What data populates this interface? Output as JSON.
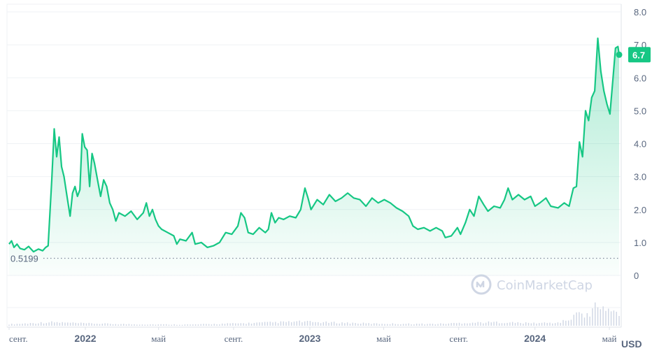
{
  "chart_data": {
    "type": "area",
    "title": "",
    "currency_label": "USD",
    "current_price_label": "6.7",
    "current_price": 6.7,
    "baseline_label": "0.5199",
    "baseline_value": 0.5199,
    "watermark": "CoinMarketCap",
    "ylim": [
      0,
      8
    ],
    "y_ticks": [
      "8.0",
      "7.0",
      "6.0",
      "5.0",
      "4.0",
      "3.0",
      "2.0",
      "1.0",
      "0"
    ],
    "y_tick_values": [
      8,
      7,
      6,
      5,
      4,
      3,
      2,
      1,
      0
    ],
    "x_ticks": [
      {
        "label": "сент.",
        "t": 0.0,
        "year": false
      },
      {
        "label": "2022",
        "t": 0.125,
        "year": true
      },
      {
        "label": "май",
        "t": 0.245,
        "year": false
      },
      {
        "label": "сент.",
        "t": 0.368,
        "year": false
      },
      {
        "label": "2023",
        "t": 0.493,
        "year": true
      },
      {
        "label": "май",
        "t": 0.614,
        "year": false
      },
      {
        "label": "сент.",
        "t": 0.737,
        "year": false
      },
      {
        "label": "2024",
        "t": 0.862,
        "year": true
      },
      {
        "label": "май",
        "t": 0.984,
        "year": false
      }
    ],
    "series": [
      {
        "values": [
          [
            0.0,
            0.95
          ],
          [
            0.004,
            1.05
          ],
          [
            0.008,
            0.85
          ],
          [
            0.013,
            0.95
          ],
          [
            0.018,
            0.82
          ],
          [
            0.025,
            0.78
          ],
          [
            0.032,
            0.88
          ],
          [
            0.04,
            0.72
          ],
          [
            0.048,
            0.8
          ],
          [
            0.055,
            0.75
          ],
          [
            0.06,
            0.85
          ],
          [
            0.064,
            0.9
          ],
          [
            0.07,
            2.9
          ],
          [
            0.074,
            4.45
          ],
          [
            0.078,
            3.6
          ],
          [
            0.082,
            4.2
          ],
          [
            0.086,
            3.3
          ],
          [
            0.09,
            3.0
          ],
          [
            0.095,
            2.4
          ],
          [
            0.1,
            1.8
          ],
          [
            0.104,
            2.5
          ],
          [
            0.108,
            2.7
          ],
          [
            0.112,
            2.4
          ],
          [
            0.116,
            2.6
          ],
          [
            0.12,
            4.3
          ],
          [
            0.124,
            3.9
          ],
          [
            0.128,
            3.8
          ],
          [
            0.132,
            2.7
          ],
          [
            0.136,
            3.7
          ],
          [
            0.14,
            3.4
          ],
          [
            0.145,
            2.9
          ],
          [
            0.15,
            2.4
          ],
          [
            0.155,
            2.9
          ],
          [
            0.16,
            2.7
          ],
          [
            0.165,
            2.2
          ],
          [
            0.17,
            2.0
          ],
          [
            0.175,
            1.65
          ],
          [
            0.18,
            1.9
          ],
          [
            0.19,
            1.8
          ],
          [
            0.2,
            1.95
          ],
          [
            0.21,
            1.7
          ],
          [
            0.22,
            1.9
          ],
          [
            0.225,
            2.2
          ],
          [
            0.23,
            1.8
          ],
          [
            0.235,
            2.0
          ],
          [
            0.24,
            1.7
          ],
          [
            0.245,
            1.5
          ],
          [
            0.25,
            1.4
          ],
          [
            0.26,
            1.3
          ],
          [
            0.27,
            1.2
          ],
          [
            0.275,
            0.95
          ],
          [
            0.28,
            1.1
          ],
          [
            0.29,
            1.05
          ],
          [
            0.3,
            1.3
          ],
          [
            0.305,
            0.95
          ],
          [
            0.315,
            1.0
          ],
          [
            0.325,
            0.85
          ],
          [
            0.335,
            0.9
          ],
          [
            0.345,
            1.0
          ],
          [
            0.355,
            1.3
          ],
          [
            0.365,
            1.25
          ],
          [
            0.375,
            1.5
          ],
          [
            0.38,
            1.9
          ],
          [
            0.386,
            1.75
          ],
          [
            0.392,
            1.3
          ],
          [
            0.4,
            1.25
          ],
          [
            0.41,
            1.45
          ],
          [
            0.42,
            1.3
          ],
          [
            0.425,
            1.4
          ],
          [
            0.43,
            1.9
          ],
          [
            0.436,
            1.6
          ],
          [
            0.442,
            1.75
          ],
          [
            0.45,
            1.7
          ],
          [
            0.46,
            1.8
          ],
          [
            0.47,
            1.75
          ],
          [
            0.478,
            2.0
          ],
          [
            0.485,
            2.65
          ],
          [
            0.49,
            2.35
          ],
          [
            0.495,
            2.0
          ],
          [
            0.505,
            2.3
          ],
          [
            0.515,
            2.15
          ],
          [
            0.525,
            2.45
          ],
          [
            0.535,
            2.25
          ],
          [
            0.545,
            2.35
          ],
          [
            0.555,
            2.5
          ],
          [
            0.565,
            2.35
          ],
          [
            0.575,
            2.3
          ],
          [
            0.585,
            2.1
          ],
          [
            0.595,
            2.35
          ],
          [
            0.605,
            2.2
          ],
          [
            0.615,
            2.3
          ],
          [
            0.625,
            2.2
          ],
          [
            0.635,
            2.05
          ],
          [
            0.645,
            1.95
          ],
          [
            0.655,
            1.8
          ],
          [
            0.662,
            1.5
          ],
          [
            0.67,
            1.4
          ],
          [
            0.68,
            1.45
          ],
          [
            0.69,
            1.35
          ],
          [
            0.7,
            1.45
          ],
          [
            0.71,
            1.35
          ],
          [
            0.715,
            1.15
          ],
          [
            0.725,
            1.2
          ],
          [
            0.735,
            1.45
          ],
          [
            0.74,
            1.25
          ],
          [
            0.748,
            1.6
          ],
          [
            0.755,
            2.0
          ],
          [
            0.762,
            1.8
          ],
          [
            0.77,
            2.4
          ],
          [
            0.778,
            2.15
          ],
          [
            0.785,
            1.95
          ],
          [
            0.795,
            2.1
          ],
          [
            0.805,
            2.05
          ],
          [
            0.812,
            2.3
          ],
          [
            0.818,
            2.65
          ],
          [
            0.825,
            2.3
          ],
          [
            0.835,
            2.45
          ],
          [
            0.845,
            2.3
          ],
          [
            0.855,
            2.4
          ],
          [
            0.862,
            2.1
          ],
          [
            0.87,
            2.2
          ],
          [
            0.88,
            2.35
          ],
          [
            0.888,
            2.1
          ],
          [
            0.9,
            2.05
          ],
          [
            0.91,
            2.2
          ],
          [
            0.918,
            2.1
          ],
          [
            0.925,
            2.65
          ],
          [
            0.93,
            2.7
          ],
          [
            0.935,
            4.05
          ],
          [
            0.94,
            3.6
          ],
          [
            0.945,
            5.0
          ],
          [
            0.95,
            4.7
          ],
          [
            0.955,
            5.4
          ],
          [
            0.96,
            5.6
          ],
          [
            0.965,
            7.2
          ],
          [
            0.97,
            6.2
          ],
          [
            0.975,
            5.6
          ],
          [
            0.98,
            5.2
          ],
          [
            0.985,
            4.9
          ],
          [
            0.99,
            6.0
          ],
          [
            0.994,
            6.9
          ],
          [
            0.998,
            6.95
          ],
          [
            1.0,
            6.7
          ]
        ]
      }
    ],
    "volume_ylim": [
      0,
      1
    ],
    "volume": [
      [
        0.0,
        0.05
      ],
      [
        0.07,
        0.12
      ],
      [
        0.12,
        0.08
      ],
      [
        0.2,
        0.05
      ],
      [
        0.3,
        0.04
      ],
      [
        0.38,
        0.08
      ],
      [
        0.48,
        0.14
      ],
      [
        0.5,
        0.12
      ],
      [
        0.55,
        0.1
      ],
      [
        0.6,
        0.07
      ],
      [
        0.7,
        0.06
      ],
      [
        0.75,
        0.1
      ],
      [
        0.8,
        0.12
      ],
      [
        0.85,
        0.09
      ],
      [
        0.9,
        0.1
      ],
      [
        0.92,
        0.22
      ],
      [
        0.93,
        0.38
      ],
      [
        0.94,
        0.5
      ],
      [
        0.945,
        0.32
      ],
      [
        0.955,
        0.42
      ],
      [
        0.96,
        0.88
      ],
      [
        0.965,
        0.62
      ],
      [
        0.97,
        0.48
      ],
      [
        0.975,
        0.6
      ],
      [
        0.98,
        0.45
      ],
      [
        0.985,
        0.7
      ],
      [
        0.99,
        0.55
      ],
      [
        0.995,
        0.4
      ],
      [
        1.0,
        0.35
      ]
    ],
    "colors": {
      "line": "#16c784",
      "fill_top": "#16c784",
      "badge": "#16c784",
      "grid": "#eff2f5",
      "axis_text": "#58667e",
      "volume": "#cfd6e4",
      "baseline": "#7f8a9b",
      "watermark": "#cfd6e4"
    },
    "grid": true,
    "legend": "none"
  }
}
